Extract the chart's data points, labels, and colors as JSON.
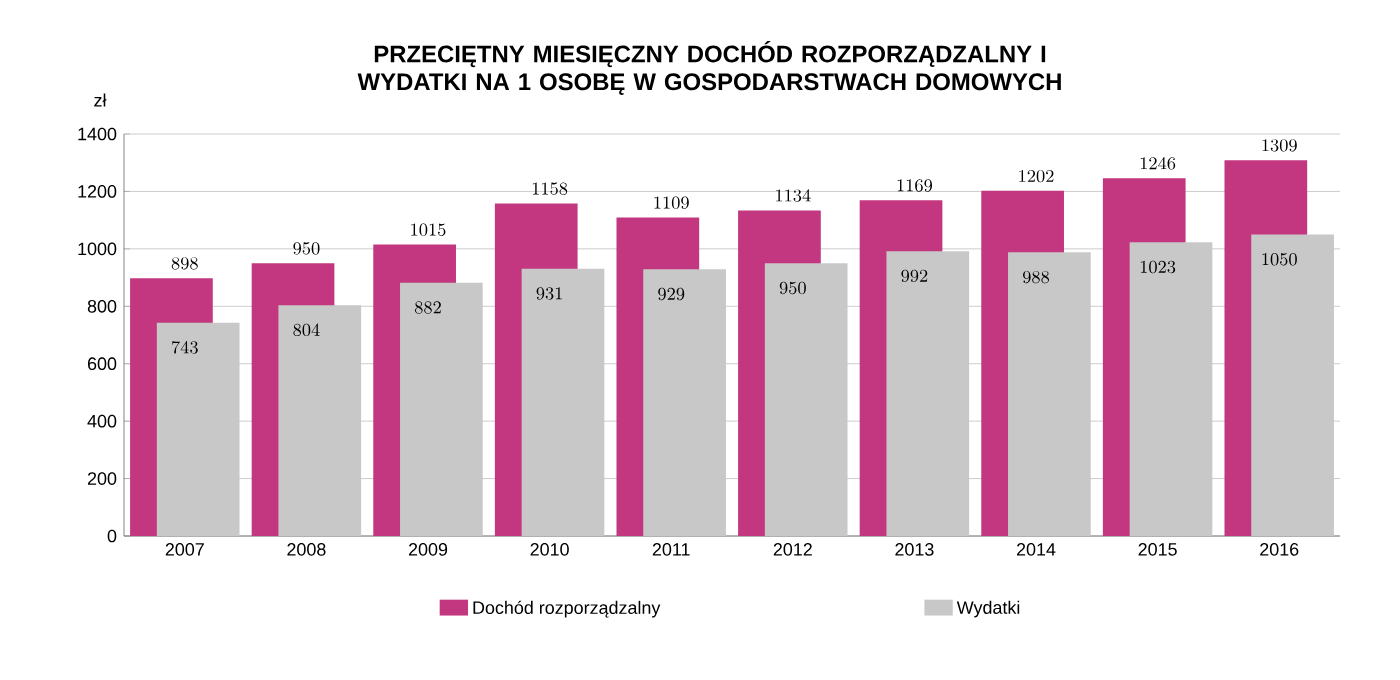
{
  "chart_data": {
    "type": "bar",
    "title": "PRZECIĘTNY MIESIĘCZNY DOCHÓD ROZPORZĄDZALNY I WYDATKI NA 1 OSOBĘ W GOSPODARSTWACH DOMOWYCH",
    "ylabel": "zł",
    "categories": [
      "2007",
      "2008",
      "2009",
      "2010",
      "2011",
      "2012",
      "2013",
      "2014",
      "2015",
      "2016"
    ],
    "series": [
      {
        "name": "Dochód rozporządzalny",
        "color": "#c2377f",
        "values": [
          898,
          950,
          1015,
          1158,
          1109,
          1134,
          1169,
          1202,
          1246,
          1309
        ]
      },
      {
        "name": "Wydatki",
        "color": "#c8c8c8",
        "values": [
          743,
          804,
          882,
          931,
          929,
          950,
          992,
          988,
          1023,
          1050
        ]
      }
    ],
    "ylim": [
      0,
      1400
    ],
    "yticks": [
      0,
      200,
      400,
      600,
      800,
      1000,
      1200,
      1400
    ],
    "grid": "y",
    "legend": "bottom",
    "data_labels": true
  }
}
